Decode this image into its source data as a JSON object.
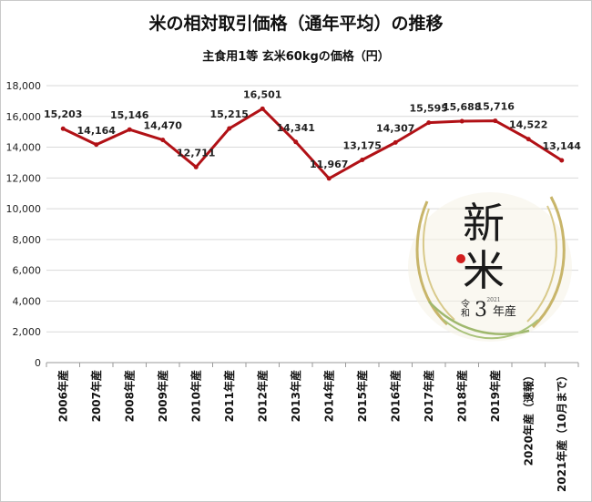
{
  "chart_data": {
    "type": "line",
    "title": "米の相対取引価格（通年平均）の推移",
    "subtitle": "主食用1等 玄米60kgの価格（円）",
    "categories": [
      "2006年産",
      "2007年産",
      "2008年産",
      "2009年産",
      "2010年産",
      "2011年産",
      "2012年産",
      "2013年産",
      "2014年産",
      "2015年産",
      "2016年産",
      "2017年産",
      "2018年産",
      "2019年産",
      "2020年産（速報）",
      "2021年産（10月まで）"
    ],
    "values": [
      15203,
      14164,
      15146,
      14470,
      12711,
      15215,
      16501,
      14341,
      11967,
      13175,
      14307,
      15595,
      15688,
      15716,
      14522,
      13144
    ],
    "data_labels": [
      "15,203",
      "14,164",
      "15,146",
      "14,470",
      "12,711",
      "15,215",
      "16,501",
      "14,341",
      "11,967",
      "13,175",
      "14,307",
      "15,595",
      "15,688",
      "15,716",
      "14,522",
      "13,144"
    ],
    "y_ticks": [
      "0",
      "2,000",
      "4,000",
      "6,000",
      "8,000",
      "10,000",
      "12,000",
      "14,000",
      "16,000",
      "18,000"
    ],
    "ylim": [
      0,
      18000
    ],
    "grid": true,
    "line_color": "#b11116"
  },
  "badge": {
    "line1": "新",
    "line2": "米",
    "era": "令和",
    "year_num": "3",
    "year_suffix": "年産",
    "year_small": "2021"
  }
}
